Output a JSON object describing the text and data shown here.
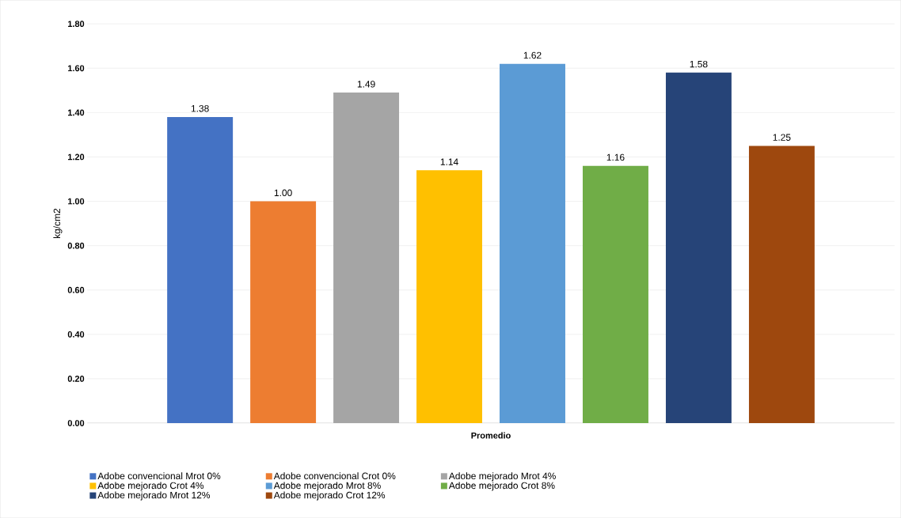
{
  "chart_data": {
    "type": "bar",
    "ylabel": "kg/cm2",
    "categories": [
      "Promedio"
    ],
    "series": [
      {
        "name": "Adobe convencional Mrot 0%",
        "color": "#4472c4",
        "values": [
          1.38
        ],
        "value_labels": [
          "1.38"
        ]
      },
      {
        "name": "Adobe convencional Crot 0%",
        "color": "#ed7d31",
        "values": [
          1.0
        ],
        "value_labels": [
          "1.00"
        ]
      },
      {
        "name": "Adobe mejorado Mrot 4%",
        "color": "#a5a5a5",
        "values": [
          1.49
        ],
        "value_labels": [
          "1.49"
        ]
      },
      {
        "name": "Adobe mejorado Crot 4%",
        "color": "#ffc000",
        "values": [
          1.14
        ],
        "value_labels": [
          "1.14"
        ]
      },
      {
        "name": "Adobe mejorado Mrot 8%",
        "color": "#5b9bd5",
        "values": [
          1.62
        ],
        "value_labels": [
          "1.62"
        ]
      },
      {
        "name": "Adobe mejorado Crot 8%",
        "color": "#70ad47",
        "values": [
          1.16
        ],
        "value_labels": [
          "1.16"
        ]
      },
      {
        "name": "Adobe mejorado Mrot 12%",
        "color": "#264478",
        "values": [
          1.58
        ],
        "value_labels": [
          "1.58"
        ]
      },
      {
        "name": "Adobe mejorado Crot 12%",
        "color": "#9e480e",
        "values": [
          1.25
        ],
        "value_labels": [
          "1.25"
        ]
      }
    ],
    "ylim": [
      0,
      1.8
    ],
    "yticks": [
      {
        "value": 0,
        "label": "0.00"
      },
      {
        "value": 0.2,
        "label": "0.20"
      },
      {
        "value": 0.4,
        "label": "0.40"
      },
      {
        "value": 0.6,
        "label": "0.60"
      },
      {
        "value": 0.8,
        "label": "0.80"
      },
      {
        "value": 1.0,
        "label": "1.00"
      },
      {
        "value": 1.2,
        "label": "1.20"
      },
      {
        "value": 1.4,
        "label": "1.40"
      },
      {
        "value": 1.6,
        "label": "1.60"
      },
      {
        "value": 1.8,
        "label": "1.80"
      }
    ],
    "grid": "y",
    "legend": "bottom"
  }
}
